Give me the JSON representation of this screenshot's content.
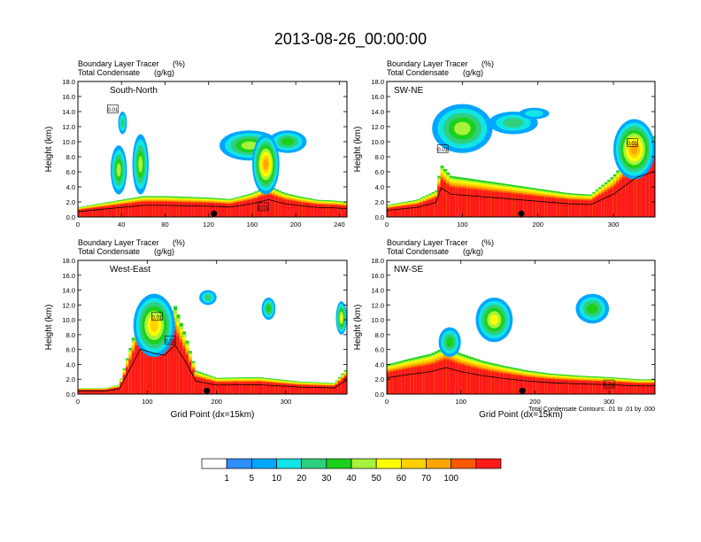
{
  "title": "2013-08-26_00:00:00",
  "chart_data": [
    {
      "type": "heatmap",
      "panel_label": "South-North",
      "subtitle_1": "Boundary Layer Tracer",
      "subtitle_1_units": "(%)",
      "subtitle_2": "Total Condensate",
      "subtitle_2_units": "(g/kg)",
      "ylabel": "Height (km)",
      "xlabel": "",
      "xlim": [
        0,
        247
      ],
      "ylim": [
        0,
        18
      ],
      "xticks": [
        0,
        40,
        80,
        120,
        160,
        200,
        240
      ],
      "yticks": [
        "0.0",
        "2.0",
        "4.0",
        "6.0",
        "8.0",
        "10.0",
        "12.0",
        "14.0",
        "16.0",
        "18.0"
      ],
      "marker_x": 125,
      "contour_labels": [
        {
          "text": "0.01",
          "x": 32,
          "y": 14.3
        },
        {
          "text": "0.01",
          "x": 170,
          "y": 1.3
        }
      ],
      "boundary_layer_profile": [
        [
          0,
          1.3
        ],
        [
          20,
          1.8
        ],
        [
          40,
          2.3
        ],
        [
          60,
          2.8
        ],
        [
          80,
          2.8
        ],
        [
          100,
          2.7
        ],
        [
          120,
          2.6
        ],
        [
          140,
          2.4
        ],
        [
          160,
          3.2
        ],
        [
          175,
          4.2
        ],
        [
          190,
          3.2
        ],
        [
          205,
          2.7
        ],
        [
          220,
          2.3
        ],
        [
          235,
          2.2
        ],
        [
          247,
          2.0
        ]
      ],
      "clouds": [
        {
          "x": [
            130,
            185
          ],
          "y": [
            7.5,
            11.5
          ],
          "peak": 30
        },
        {
          "x": [
            175,
            210
          ],
          "y": [
            8.5,
            11.5
          ],
          "peak": 20
        },
        {
          "x": [
            30,
            45
          ],
          "y": [
            3.0,
            9.5
          ],
          "peak": 30
        },
        {
          "x": [
            50,
            65
          ],
          "y": [
            3.0,
            11.0
          ],
          "peak": 30
        },
        {
          "x": [
            160,
            185
          ],
          "y": [
            3.0,
            11.0
          ],
          "peak": 60
        },
        {
          "x": [
            37,
            45
          ],
          "y": [
            11.0,
            14.0
          ],
          "peak": 10
        }
      ]
    },
    {
      "type": "heatmap",
      "panel_label": "SW-NE",
      "subtitle_1": "Boundary Layer Tracer",
      "subtitle_1_units": "(%)",
      "subtitle_2": "Total Condensate",
      "subtitle_2_units": "(g/kg)",
      "ylabel": "Height (km)",
      "xlabel": "",
      "xlim": [
        0,
        355
      ],
      "ylim": [
        0,
        18
      ],
      "xticks": [
        0,
        100,
        200,
        300
      ],
      "yticks": [
        "0.0",
        "2.0",
        "4.0",
        "6.0",
        "8.0",
        "10.0",
        "12.0",
        "14.0",
        "16.0",
        "18.0"
      ],
      "marker_x": 178,
      "contour_labels": [
        {
          "text": "0.01",
          "x": 74,
          "y": 9.0
        },
        {
          "text": "0.01",
          "x": 325,
          "y": 9.8
        }
      ],
      "boundary_layer_profile": [
        [
          0,
          1.6
        ],
        [
          40,
          2.3
        ],
        [
          65,
          3.5
        ],
        [
          72,
          7.0
        ],
        [
          85,
          5.5
        ],
        [
          120,
          5.0
        ],
        [
          160,
          4.4
        ],
        [
          200,
          3.8
        ],
        [
          240,
          3.2
        ],
        [
          270,
          3.0
        ],
        [
          300,
          5.5
        ],
        [
          330,
          9.5
        ],
        [
          355,
          11.0
        ]
      ],
      "clouds": [
        {
          "x": [
            60,
            140
          ],
          "y": [
            8.5,
            15.0
          ],
          "peak": 30
        },
        {
          "x": [
            135,
            200
          ],
          "y": [
            11.0,
            14.0
          ],
          "peak": 10
        },
        {
          "x": [
            175,
            215
          ],
          "y": [
            13.0,
            14.5
          ],
          "peak": 5
        },
        {
          "x": [
            300,
            355
          ],
          "y": [
            5.0,
            13.0
          ],
          "peak": 60
        }
      ]
    },
    {
      "type": "heatmap",
      "panel_label": "West-East",
      "subtitle_1": "Boundary Layer Tracer",
      "subtitle_1_units": "(%)",
      "subtitle_2": "Total Condensate",
      "subtitle_2_units": "(g/kg)",
      "ylabel": "Height (km)",
      "xlabel": "Grid Point (dx=15km)",
      "xlim": [
        0,
        388
      ],
      "ylim": [
        0,
        18
      ],
      "xticks": [
        0,
        100,
        200,
        300
      ],
      "yticks": [
        "0.0",
        "2.0",
        "4.0",
        "6.0",
        "8.0",
        "10.0",
        "12.0",
        "14.0",
        "16.0",
        "18.0"
      ],
      "marker_x": 186,
      "contour_labels": [
        {
          "text": "0.01",
          "x": 114,
          "y": 10.4
        },
        {
          "text": "0.01",
          "x": 133,
          "y": 7.2
        }
      ],
      "boundary_layer_profile": [
        [
          0,
          0.8
        ],
        [
          40,
          0.8
        ],
        [
          60,
          1.3
        ],
        [
          70,
          4.5
        ],
        [
          90,
          11.0
        ],
        [
          110,
          10.0
        ],
        [
          125,
          9.5
        ],
        [
          140,
          12.0
        ],
        [
          155,
          8.0
        ],
        [
          170,
          3.2
        ],
        [
          200,
          2.2
        ],
        [
          260,
          2.3
        ],
        [
          320,
          1.7
        ],
        [
          370,
          1.5
        ],
        [
          388,
          3.5
        ]
      ],
      "clouds": [
        {
          "x": [
            80,
            140
          ],
          "y": [
            5.0,
            13.5
          ],
          "peak": 50
        },
        {
          "x": [
            175,
            200
          ],
          "y": [
            12.0,
            14.0
          ],
          "peak": 10
        },
        {
          "x": [
            265,
            285
          ],
          "y": [
            10.0,
            13.0
          ],
          "peak": 20
        },
        {
          "x": [
            372,
            388
          ],
          "y": [
            8.0,
            12.5
          ],
          "peak": 40
        }
      ]
    },
    {
      "type": "heatmap",
      "panel_label": "NW-SE",
      "subtitle_1": "Boundary Layer Tracer",
      "subtitle_1_units": "(%)",
      "subtitle_2": "Total Condensate",
      "subtitle_2_units": "(g/kg)",
      "ylabel": "Height (km)",
      "xlabel": "Grid Point (dx=15km)",
      "xlim": [
        0,
        362
      ],
      "ylim": [
        0,
        18
      ],
      "xticks": [
        0,
        100,
        200,
        300
      ],
      "yticks": [
        "0.0",
        "2.0",
        "4.0",
        "6.0",
        "8.0",
        "10.0",
        "12.0",
        "14.0",
        "16.0",
        "18.0"
      ],
      "marker_x": 183,
      "contour_labels": [
        {
          "text": "0.01",
          "x": 300,
          "y": 1.3
        }
      ],
      "footnote": "Total Condensate Contours: .01 to .01 by .000",
      "boundary_layer_profile": [
        [
          0,
          4.0
        ],
        [
          30,
          4.8
        ],
        [
          60,
          5.5
        ],
        [
          80,
          6.5
        ],
        [
          100,
          5.5
        ],
        [
          130,
          4.5
        ],
        [
          160,
          3.8
        ],
        [
          190,
          3.2
        ],
        [
          220,
          2.8
        ],
        [
          260,
          2.5
        ],
        [
          300,
          2.3
        ],
        [
          340,
          2.0
        ],
        [
          362,
          2.0
        ]
      ],
      "clouds": [
        {
          "x": [
            120,
            170
          ],
          "y": [
            7.0,
            13.0
          ],
          "peak": 40
        },
        {
          "x": [
            255,
            300
          ],
          "y": [
            9.5,
            13.5
          ],
          "peak": 20
        },
        {
          "x": [
            70,
            100
          ],
          "y": [
            5.0,
            9.0
          ],
          "peak": 20
        }
      ]
    }
  ],
  "colorbar": {
    "colors": [
      "#ffffff",
      "#2e8fff",
      "#00a6ff",
      "#11e5e5",
      "#2ed07f",
      "#1bd11b",
      "#a7f23c",
      "#ffff00",
      "#ffd100",
      "#ffa500",
      "#ff5a00",
      "#ff1a1a"
    ],
    "labels": [
      "1",
      "5",
      "10",
      "20",
      "30",
      "40",
      "50",
      "60",
      "70",
      "100"
    ]
  }
}
